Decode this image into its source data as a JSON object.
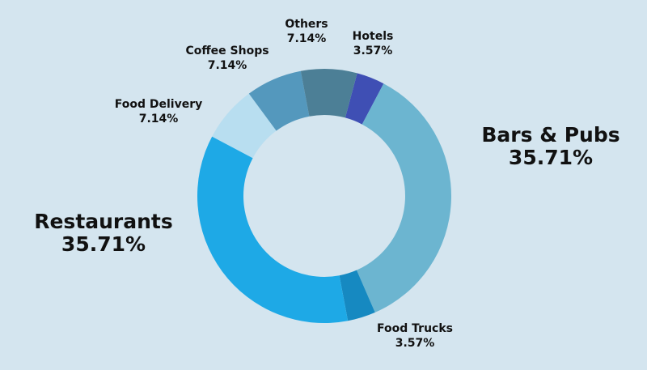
{
  "chart_data": {
    "type": "pie",
    "title": "",
    "categories": [
      "Hotels",
      "Bars & Pubs",
      "Food Trucks",
      "Restaurants",
      "Food Delivery",
      "Coffee Shops",
      "Others"
    ],
    "values": [
      3.57,
      35.71,
      3.57,
      35.71,
      7.14,
      7.14,
      7.14
    ],
    "value_labels": [
      "3.57%",
      "35.71%",
      "3.57%",
      "35.71%",
      "7.14%",
      "7.14%",
      "7.14%"
    ],
    "colors": [
      "#3f4fb4",
      "#6cb5d0",
      "#1689c1",
      "#1ea9e6",
      "#b8def0",
      "#5498bd",
      "#4c7f96"
    ],
    "legend": "none",
    "style": "donut"
  },
  "labels": [
    {
      "name": "Hotels",
      "pct": "3.57%"
    },
    {
      "name": "Bars & Pubs",
      "pct": "35.71%"
    },
    {
      "name": "Food Trucks",
      "pct": "3.57%"
    },
    {
      "name": "Restaurants",
      "pct": "35.71%"
    },
    {
      "name": "Food Delivery",
      "pct": "7.14%"
    },
    {
      "name": "Coffee Shops",
      "pct": "7.14%"
    },
    {
      "name": "Others",
      "pct": "7.14%"
    }
  ]
}
